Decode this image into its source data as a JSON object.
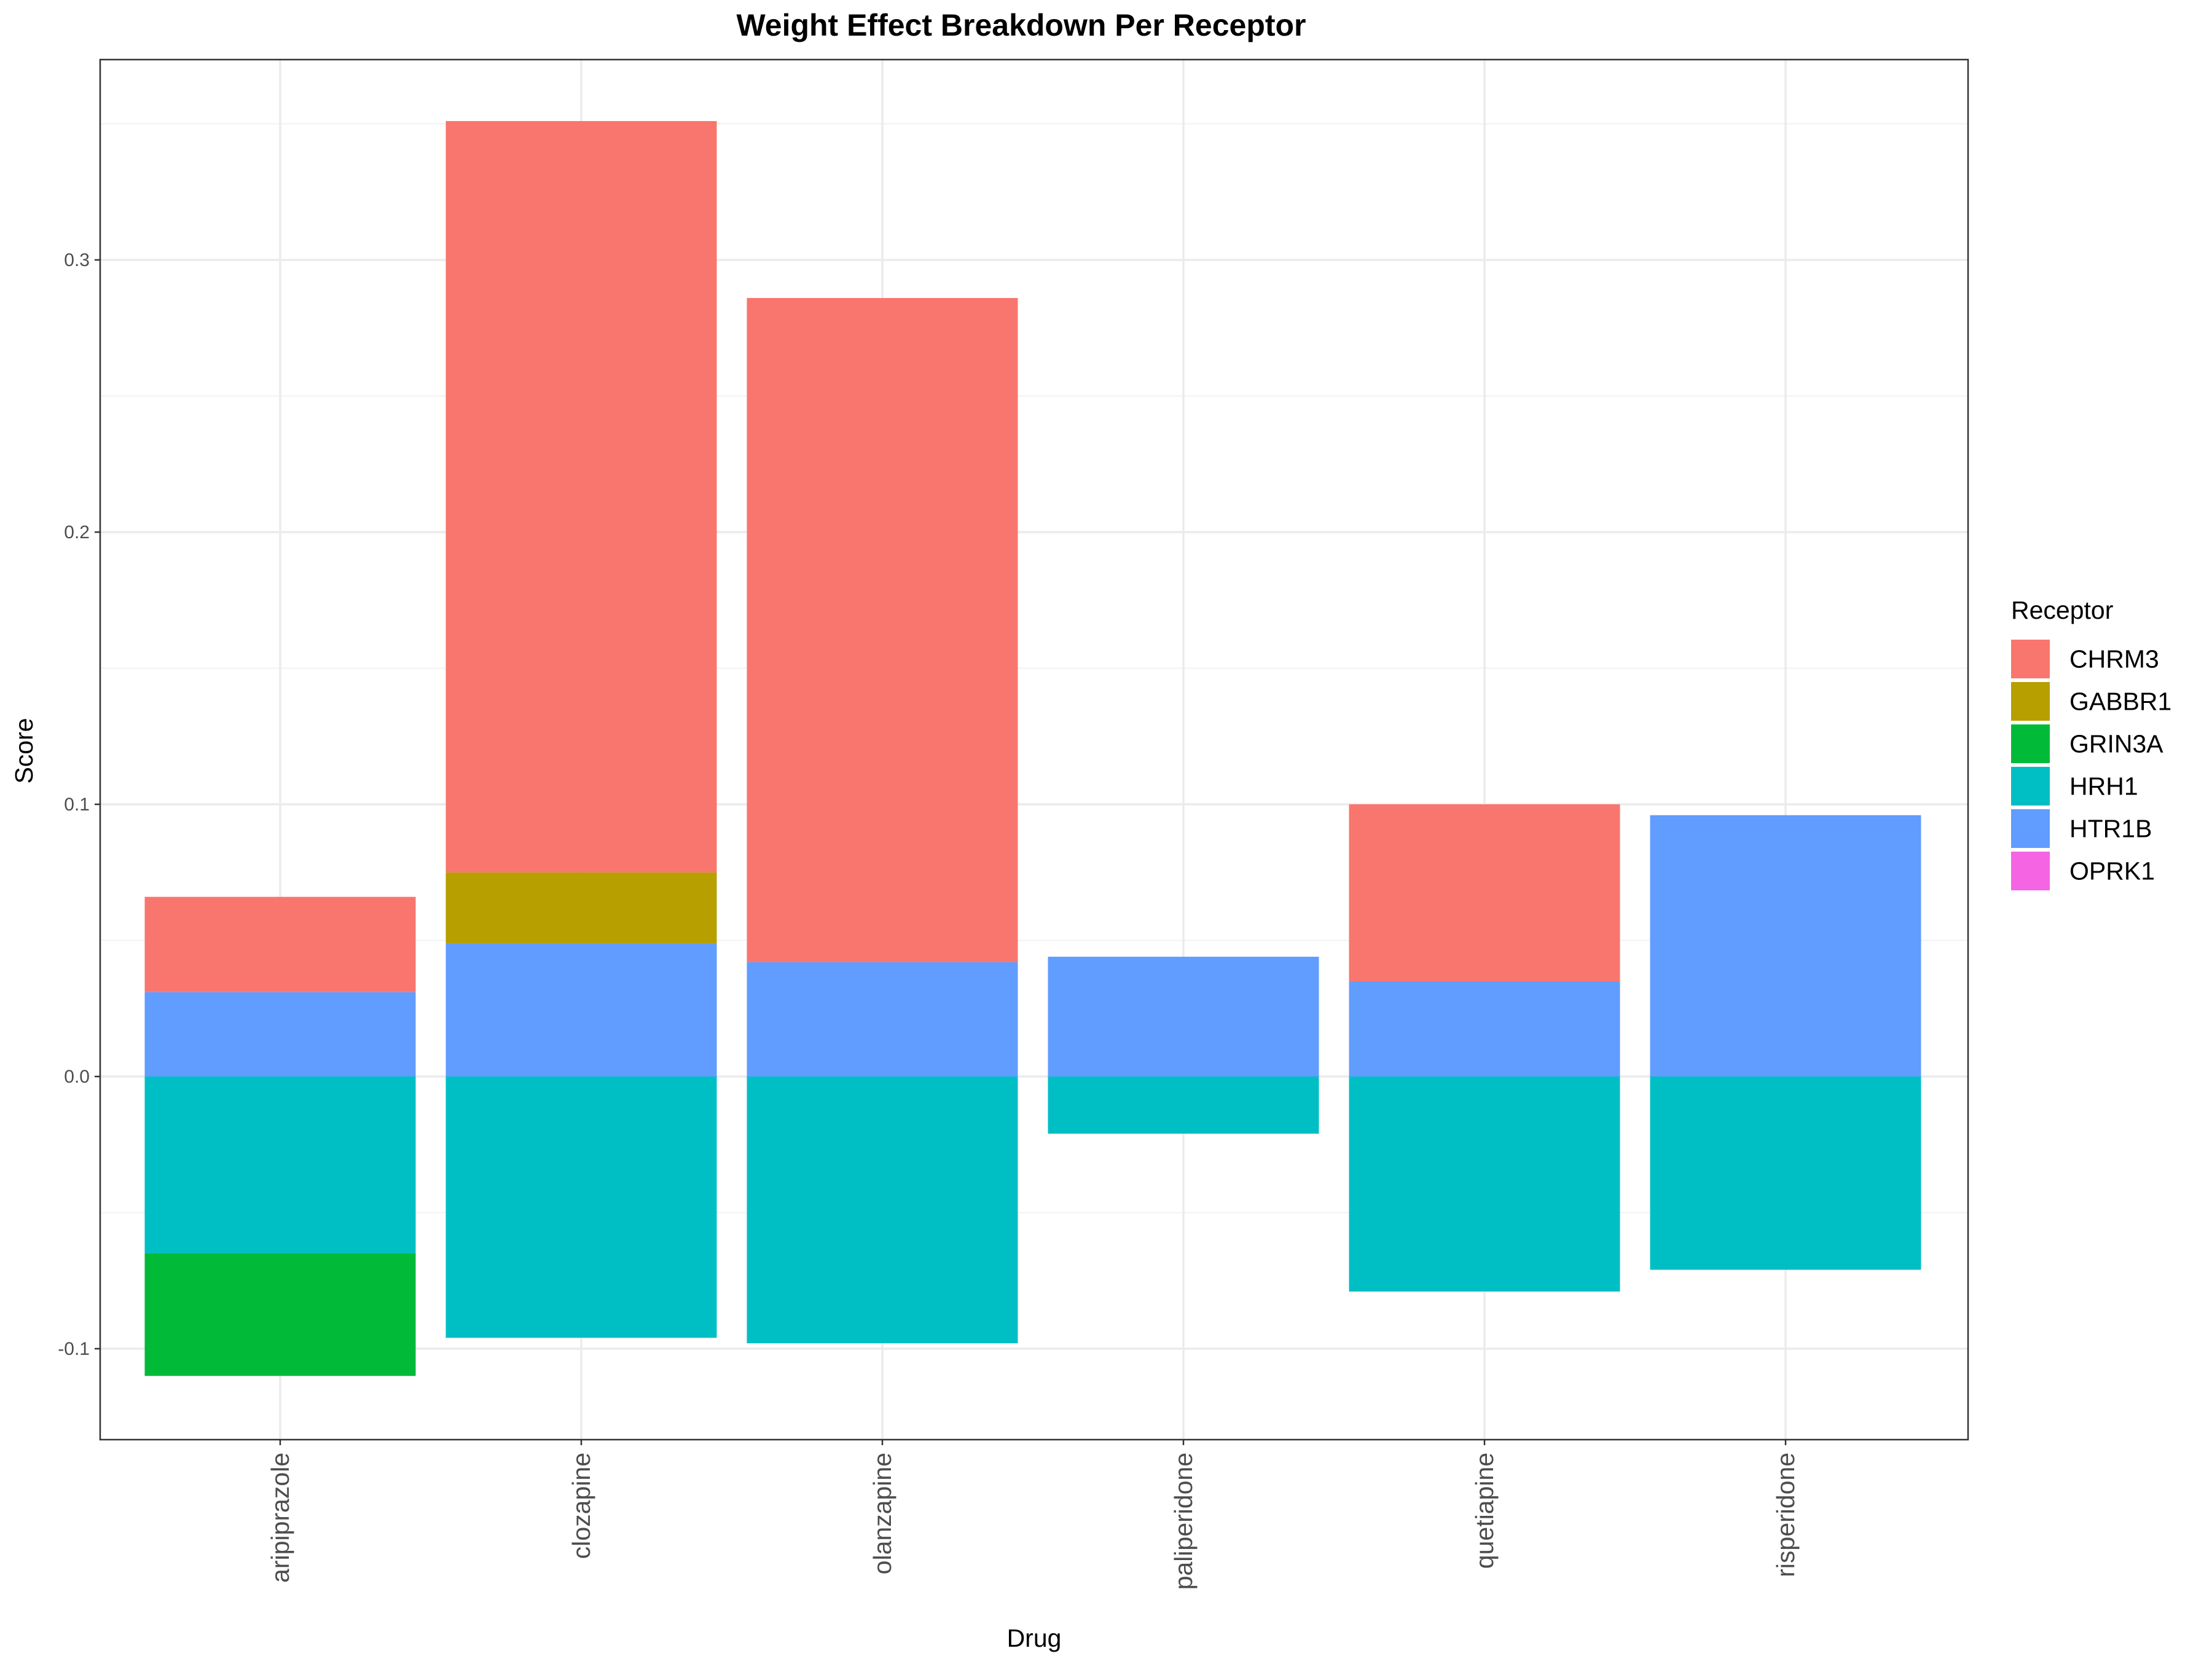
{
  "chart_data": {
    "type": "bar",
    "stacked": true,
    "title": "Weight Effect Breakdown Per Receptor",
    "xlabel": "Drug",
    "ylabel": "Score",
    "ylim": [
      -0.125,
      0.375
    ],
    "yticks": [
      -0.1,
      0.0,
      0.1,
      0.2,
      0.3
    ],
    "ytick_labels": [
      "-0.1",
      "0.0",
      "0.1",
      "0.2",
      "0.3"
    ],
    "grid": true,
    "legend_title": "Receptor",
    "legend_position": "right",
    "categories": [
      "aripiprazole",
      "clozapine",
      "olanzapine",
      "paliperidone",
      "quetiapine",
      "risperidone"
    ],
    "series": [
      {
        "name": "CHRM3",
        "color": "#F8766D",
        "values": [
          0.035,
          0.276,
          0.244,
          0,
          0.065,
          0
        ]
      },
      {
        "name": "GABBR1",
        "color": "#B79F00",
        "values": [
          0,
          0.026,
          0,
          0,
          0,
          0
        ]
      },
      {
        "name": "GRIN3A",
        "color": "#00BA38",
        "values": [
          -0.045,
          0,
          0,
          0,
          0,
          0
        ]
      },
      {
        "name": "HRH1",
        "color": "#00BFC4",
        "values": [
          -0.065,
          -0.096,
          -0.098,
          -0.021,
          -0.079,
          -0.071
        ]
      },
      {
        "name": "HTR1B",
        "color": "#619CFF",
        "values": [
          0.031,
          0.049,
          0.042,
          0.044,
          0.035,
          0.096
        ]
      },
      {
        "name": "OPRK1",
        "color": "#F564E3",
        "values": [
          0,
          0,
          0,
          0,
          0,
          0
        ]
      }
    ],
    "stack_order": [
      "HTR1B",
      "GABBR1",
      "CHRM3",
      "HRH1",
      "GRIN3A",
      "OPRK1"
    ]
  }
}
